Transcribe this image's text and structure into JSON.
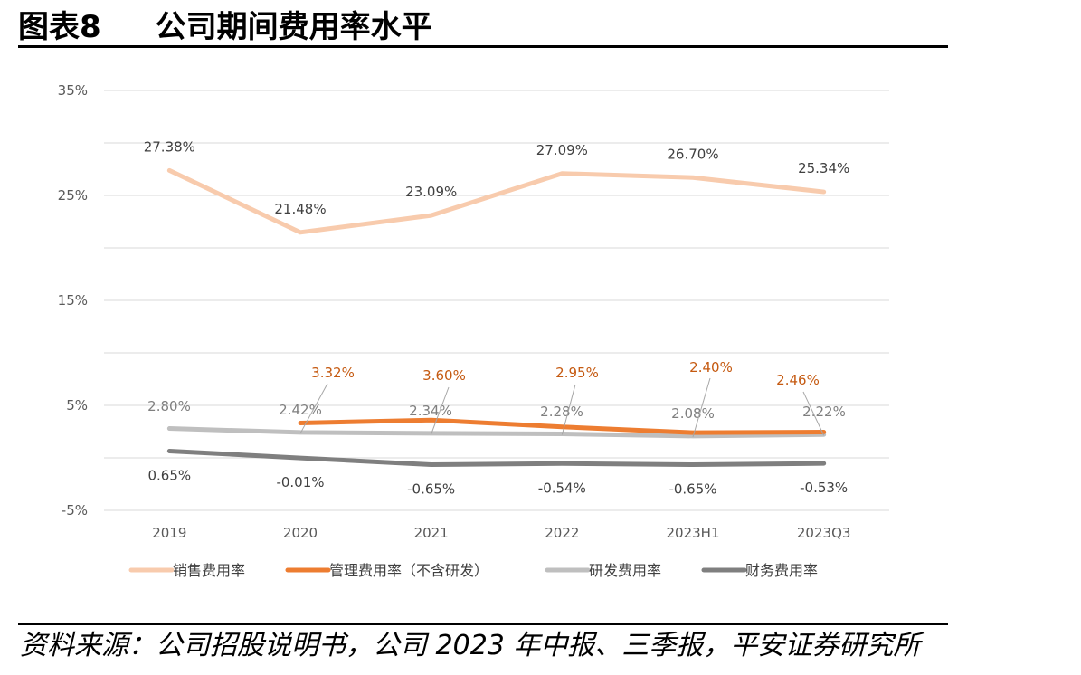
{
  "header": {
    "figure_no": "图表8",
    "title": "公司期间费用率水平"
  },
  "source": "资料来源：公司招股说明书，公司 2023 年中报、三季报，平安证券研究所",
  "chart_data": {
    "type": "line",
    "categories": [
      "2019",
      "2020",
      "2021",
      "2022",
      "2023H1",
      "2023Q3"
    ],
    "y_ticks": [
      "35%",
      "25%",
      "15%",
      "5%",
      "-5%"
    ],
    "ylim": [
      -5,
      35
    ],
    "grid": true,
    "legend_position": "bottom",
    "series": [
      {
        "name": "销售费用率",
        "color": "#F8CBAD",
        "values": [
          27.38,
          21.48,
          23.09,
          27.09,
          26.7,
          25.34
        ],
        "labels": [
          "27.38%",
          "21.48%",
          "23.09%",
          "27.09%",
          "26.70%",
          "25.34%"
        ]
      },
      {
        "name": "管理费用率（不含研发）",
        "color": "#ED7D31",
        "values": [
          null,
          3.32,
          3.6,
          2.95,
          2.4,
          2.46
        ],
        "labels": [
          "",
          "3.32%",
          "3.60%",
          "2.95%",
          "2.40%",
          "2.46%"
        ]
      },
      {
        "name": "研发费用率",
        "color": "#BFBFBF",
        "values": [
          2.8,
          2.42,
          2.34,
          2.28,
          2.08,
          2.22
        ],
        "labels": [
          "2.80%",
          "2.42%",
          "2.34%",
          "2.28%",
          "2.08%",
          "2.22%"
        ]
      },
      {
        "name": "财务费用率",
        "color": "#7F7F7F",
        "values": [
          0.65,
          -0.01,
          -0.65,
          -0.54,
          -0.65,
          -0.53
        ],
        "labels": [
          "0.65%",
          "-0.01%",
          "-0.65%",
          "-0.54%",
          "-0.65%",
          "-0.53%"
        ]
      }
    ]
  }
}
